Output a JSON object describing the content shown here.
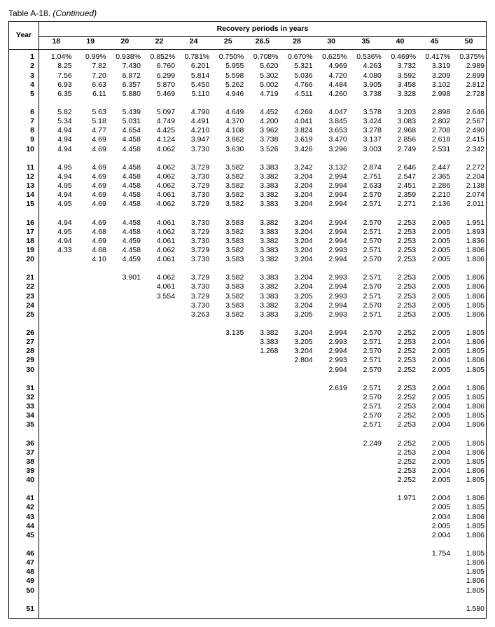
{
  "caption_table": "Table A-18.",
  "caption_cont": "(Continued)",
  "year_header": "Year",
  "rp_header": "Recovery periods in years",
  "columns": [
    "18",
    "19",
    "20",
    "22",
    "24",
    "25",
    "26.5",
    "28",
    "30",
    "35",
    "40",
    "45",
    "50"
  ],
  "groups": [
    {
      "start": 1,
      "rows": [
        [
          "1.04%",
          "0.99%",
          "0.938%",
          "0.852%",
          "0.781%",
          "0.750%",
          "0.708%",
          "0.670%",
          "0.625%",
          "0.536%",
          "0.469%",
          "0.417%",
          "0.375%"
        ],
        [
          "8.25",
          "7.82",
          "7.430",
          "6.760",
          "6.201",
          "5.955",
          "5.620",
          "5.321",
          "4.969",
          "4.263",
          "3.732",
          "3.319",
          "2.989"
        ],
        [
          "7.56",
          "7.20",
          "6.872",
          "6.299",
          "5.814",
          "5.598",
          "5.302",
          "5.036",
          "4.720",
          "4.080",
          "3.592",
          "3.209",
          "2.899"
        ],
        [
          "6.93",
          "6.63",
          "6.357",
          "5.870",
          "5.450",
          "5.262",
          "5.002",
          "4.766",
          "4.484",
          "3.905",
          "3.458",
          "3.102",
          "2.812"
        ],
        [
          "6.35",
          "6.11",
          "5.880",
          "5.469",
          "5.110",
          "4.946",
          "4.719",
          "4.511",
          "4.260",
          "3.738",
          "3.328",
          "2.998",
          "2.728"
        ]
      ]
    },
    {
      "start": 6,
      "rows": [
        [
          "5.82",
          "5.63",
          "5.439",
          "5.097",
          "4.790",
          "4.649",
          "4.452",
          "4.269",
          "4.047",
          "3.578",
          "3.203",
          "2.898",
          "2.646"
        ],
        [
          "5.34",
          "5.18",
          "5.031",
          "4.749",
          "4.491",
          "4.370",
          "4.200",
          "4.041",
          "3.845",
          "3.424",
          "3.083",
          "2.802",
          "2.567"
        ],
        [
          "4.94",
          "4.77",
          "4.654",
          "4.425",
          "4.210",
          "4.108",
          "3.962",
          "3.824",
          "3.653",
          "3.278",
          "2.968",
          "2.708",
          "2.490"
        ],
        [
          "4.94",
          "4.69",
          "4.458",
          "4.124",
          "3.947",
          "3.862",
          "3.738",
          "3.619",
          "3.470",
          "3.137",
          "2.856",
          "2.618",
          "2.415"
        ],
        [
          "4.94",
          "4.69",
          "4.458",
          "4.062",
          "3.730",
          "3.630",
          "3.526",
          "3.426",
          "3.296",
          "3.003",
          "2.749",
          "2.531",
          "2.342"
        ]
      ]
    },
    {
      "start": 11,
      "rows": [
        [
          "4.95",
          "4.69",
          "4.458",
          "4.062",
          "3.729",
          "3.582",
          "3.383",
          "3.242",
          "3.132",
          "2.874",
          "2.646",
          "2.447",
          "2.272"
        ],
        [
          "4.94",
          "4.69",
          "4.458",
          "4.062",
          "3.730",
          "3.582",
          "3.382",
          "3.204",
          "2.994",
          "2.751",
          "2.547",
          "2.365",
          "2.204"
        ],
        [
          "4.95",
          "4.69",
          "4.458",
          "4.062",
          "3.729",
          "3.582",
          "3.383",
          "3.204",
          "2.994",
          "2.633",
          "2.451",
          "2.286",
          "2.138"
        ],
        [
          "4.94",
          "4.69",
          "4.458",
          "4.061",
          "3.730",
          "3.582",
          "3.382",
          "3.204",
          "2.994",
          "2.570",
          "2.359",
          "2.210",
          "2.074"
        ],
        [
          "4.95",
          "4.69",
          "4.458",
          "4.062",
          "3.729",
          "3.582",
          "3.383",
          "3.204",
          "2.994",
          "2.571",
          "2.271",
          "2.136",
          "2.011"
        ]
      ]
    },
    {
      "start": 16,
      "rows": [
        [
          "4.94",
          "4.69",
          "4.458",
          "4.061",
          "3.730",
          "3.583",
          "3.382",
          "3.204",
          "2.994",
          "2.570",
          "2.253",
          "2.065",
          "1.951"
        ],
        [
          "4.95",
          "4.68",
          "4.458",
          "4.062",
          "3.729",
          "3.582",
          "3.383",
          "3.204",
          "2.994",
          "2.571",
          "2.253",
          "2.005",
          "1.893"
        ],
        [
          "4.94",
          "4.69",
          "4.459",
          "4.061",
          "3.730",
          "3.583",
          "3.382",
          "3.204",
          "2.994",
          "2.570",
          "2.253",
          "2.005",
          "1.836"
        ],
        [
          "4.33",
          "4.68",
          "4.458",
          "4.062",
          "3.729",
          "3.582",
          "3.383",
          "3.204",
          "2.993",
          "2.571",
          "2.253",
          "2.005",
          "1.806"
        ],
        [
          "",
          "4.10",
          "4.459",
          "4.061",
          "3.730",
          "3.583",
          "3.382",
          "3.204",
          "2.994",
          "2.570",
          "2.253",
          "2.005",
          "1.806"
        ]
      ]
    },
    {
      "start": 21,
      "rows": [
        [
          "",
          "",
          "3.901",
          "4.062",
          "3.729",
          "3.582",
          "3.383",
          "3.204",
          "2.993",
          "2.571",
          "2.253",
          "2.005",
          "1.806"
        ],
        [
          "",
          "",
          "",
          "4.061",
          "3.730",
          "3.583",
          "3.382",
          "3.204",
          "2.994",
          "2.570",
          "2.253",
          "2.005",
          "1.806"
        ],
        [
          "",
          "",
          "",
          "3.554",
          "3.729",
          "3.582",
          "3.383",
          "3.205",
          "2.993",
          "2.571",
          "2.253",
          "2.005",
          "1.806"
        ],
        [
          "",
          "",
          "",
          "",
          "3.730",
          "3.583",
          "3.382",
          "3.204",
          "2.994",
          "2.570",
          "2.253",
          "2.005",
          "1.805"
        ],
        [
          "",
          "",
          "",
          "",
          "3.263",
          "3.582",
          "3.383",
          "3.205",
          "2.993",
          "2.571",
          "2.253",
          "2.005",
          "1.806"
        ]
      ]
    },
    {
      "start": 26,
      "rows": [
        [
          "",
          "",
          "",
          "",
          "",
          "3.135",
          "3.382",
          "3.204",
          "2.994",
          "2.570",
          "2.252",
          "2.005",
          "1.805"
        ],
        [
          "",
          "",
          "",
          "",
          "",
          "",
          "3.383",
          "3.205",
          "2.993",
          "2.571",
          "2.253",
          "2.004",
          "1.806"
        ],
        [
          "",
          "",
          "",
          "",
          "",
          "",
          "1.268",
          "3.204",
          "2.994",
          "2.570",
          "2.252",
          "2.005",
          "1.805"
        ],
        [
          "",
          "",
          "",
          "",
          "",
          "",
          "",
          "2.804",
          "2.993",
          "2.571",
          "2.253",
          "2.004",
          "1.806"
        ],
        [
          "",
          "",
          "",
          "",
          "",
          "",
          "",
          "",
          "2.994",
          "2.570",
          "2.252",
          "2.005",
          "1.805"
        ]
      ]
    },
    {
      "start": 31,
      "rows": [
        [
          "",
          "",
          "",
          "",
          "",
          "",
          "",
          "",
          "2.619",
          "2.571",
          "2.253",
          "2.004",
          "1.806"
        ],
        [
          "",
          "",
          "",
          "",
          "",
          "",
          "",
          "",
          "",
          "2.570",
          "2.252",
          "2.005",
          "1.805"
        ],
        [
          "",
          "",
          "",
          "",
          "",
          "",
          "",
          "",
          "",
          "2.571",
          "2.253",
          "2.004",
          "1.806"
        ],
        [
          "",
          "",
          "",
          "",
          "",
          "",
          "",
          "",
          "",
          "2.570",
          "2.252",
          "2.005",
          "1.805"
        ],
        [
          "",
          "",
          "",
          "",
          "",
          "",
          "",
          "",
          "",
          "2.571",
          "2.253",
          "2.004",
          "1.806"
        ]
      ]
    },
    {
      "start": 36,
      "rows": [
        [
          "",
          "",
          "",
          "",
          "",
          "",
          "",
          "",
          "",
          "2.249",
          "2.252",
          "2.005",
          "1.805"
        ],
        [
          "",
          "",
          "",
          "",
          "",
          "",
          "",
          "",
          "",
          "",
          "2.253",
          "2.004",
          "1.806"
        ],
        [
          "",
          "",
          "",
          "",
          "",
          "",
          "",
          "",
          "",
          "",
          "2.252",
          "2.005",
          "1.805"
        ],
        [
          "",
          "",
          "",
          "",
          "",
          "",
          "",
          "",
          "",
          "",
          "2.253",
          "2.004",
          "1.806"
        ],
        [
          "",
          "",
          "",
          "",
          "",
          "",
          "",
          "",
          "",
          "",
          "2.252",
          "2.005",
          "1.805"
        ]
      ]
    },
    {
      "start": 41,
      "rows": [
        [
          "",
          "",
          "",
          "",
          "",
          "",
          "",
          "",
          "",
          "",
          "1.971",
          "2.004",
          "1.806"
        ],
        [
          "",
          "",
          "",
          "",
          "",
          "",
          "",
          "",
          "",
          "",
          "",
          "2.005",
          "1.805"
        ],
        [
          "",
          "",
          "",
          "",
          "",
          "",
          "",
          "",
          "",
          "",
          "",
          "2.004",
          "1.806"
        ],
        [
          "",
          "",
          "",
          "",
          "",
          "",
          "",
          "",
          "",
          "",
          "",
          "2.005",
          "1.805"
        ],
        [
          "",
          "",
          "",
          "",
          "",
          "",
          "",
          "",
          "",
          "",
          "",
          "2.004",
          "1.806"
        ]
      ]
    },
    {
      "start": 46,
      "rows": [
        [
          "",
          "",
          "",
          "",
          "",
          "",
          "",
          "",
          "",
          "",
          "",
          "1.754",
          "1.805"
        ],
        [
          "",
          "",
          "",
          "",
          "",
          "",
          "",
          "",
          "",
          "",
          "",
          "",
          "1.806"
        ],
        [
          "",
          "",
          "",
          "",
          "",
          "",
          "",
          "",
          "",
          "",
          "",
          "",
          "1.805"
        ],
        [
          "",
          "",
          "",
          "",
          "",
          "",
          "",
          "",
          "",
          "",
          "",
          "",
          "1.806"
        ],
        [
          "",
          "",
          "",
          "",
          "",
          "",
          "",
          "",
          "",
          "",
          "",
          "",
          "1.805"
        ]
      ]
    },
    {
      "start": 51,
      "rows": [
        [
          "",
          "",
          "",
          "",
          "",
          "",
          "",
          "",
          "",
          "",
          "",
          "",
          "1.580"
        ]
      ]
    }
  ]
}
